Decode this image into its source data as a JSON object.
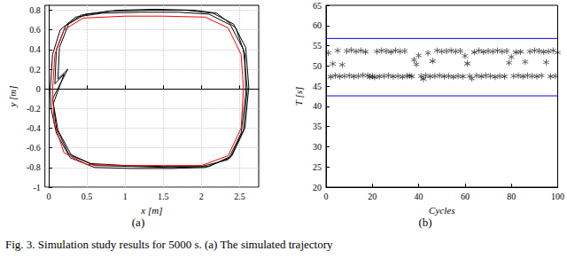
{
  "caption": "Fig. 3.   Simulation study results for 5000 s. (a) The simulated trajectory",
  "chart_data": [
    {
      "type": "line",
      "title": "(a)",
      "x_label": "x [m]",
      "y_label": "y [m]",
      "xlim": [
        -0.05,
        2.75
      ],
      "xticks": [
        0,
        0.5,
        1,
        1.5,
        2,
        2.5
      ],
      "ylim": [
        -1,
        0.85
      ],
      "yticks": [
        -1,
        -0.8,
        -0.6,
        -0.4,
        -0.2,
        0,
        0.2,
        0.4,
        0.6,
        0.8
      ],
      "grid": true,
      "series": [
        {
          "color": "#000000",
          "line_style": "solid",
          "x": [
            0.02,
            0.05,
            0.15,
            0.35,
            0.7,
            1.2,
            1.7,
            2.1,
            2.38,
            2.55,
            2.6,
            2.55,
            2.38,
            2.05,
            1.6,
            1.1,
            0.6,
            0.28,
            0.1,
            0.03,
            0.02
          ],
          "values": [
            0.0,
            0.35,
            0.6,
            0.73,
            0.77,
            0.78,
            0.78,
            0.76,
            0.65,
            0.4,
            0.0,
            -0.42,
            -0.7,
            -0.8,
            -0.81,
            -0.81,
            -0.8,
            -0.7,
            -0.45,
            -0.2,
            0.0
          ]
        },
        {
          "color": "#000000",
          "line_style": "solid",
          "x": [
            0.08,
            0.1,
            0.22,
            0.42,
            0.8,
            1.3,
            1.8,
            2.15,
            2.42,
            2.58,
            2.62,
            2.57,
            2.4,
            2.1,
            1.6,
            1.1,
            0.6,
            0.3,
            0.12,
            0.06,
            0.2,
            0.08
          ],
          "values": [
            0.05,
            0.4,
            0.64,
            0.75,
            0.79,
            0.8,
            0.8,
            0.77,
            0.66,
            0.42,
            0.02,
            -0.4,
            -0.68,
            -0.79,
            -0.8,
            -0.79,
            -0.78,
            -0.68,
            -0.42,
            -0.15,
            0.15,
            0.05
          ]
        },
        {
          "color": "#000000",
          "line_style": "solid",
          "x": [
            0.12,
            0.14,
            0.26,
            0.48,
            0.9,
            1.4,
            1.9,
            2.2,
            2.45,
            2.57,
            2.58,
            2.52,
            2.35,
            2.0,
            1.5,
            1.0,
            0.55,
            0.26,
            0.1,
            0.05,
            0.25,
            0.12
          ],
          "values": [
            0.1,
            0.42,
            0.66,
            0.76,
            0.8,
            0.81,
            0.8,
            0.77,
            0.62,
            0.35,
            -0.05,
            -0.45,
            -0.72,
            -0.79,
            -0.79,
            -0.78,
            -0.76,
            -0.66,
            -0.4,
            -0.1,
            0.2,
            0.1
          ]
        },
        {
          "color": "#ff0000",
          "line_style": "solid",
          "x": [
            0.05,
            0.08,
            0.2,
            0.45,
            1.0,
            1.5,
            2.05,
            2.35,
            2.52,
            2.55,
            2.52,
            2.35,
            2.0,
            1.5,
            1.0,
            0.5,
            0.2,
            0.07,
            0.05
          ],
          "values": [
            0.0,
            0.35,
            0.6,
            0.72,
            0.74,
            0.74,
            0.73,
            0.62,
            0.35,
            0.0,
            -0.4,
            -0.68,
            -0.78,
            -0.78,
            -0.78,
            -0.77,
            -0.65,
            -0.35,
            0.0
          ]
        }
      ]
    },
    {
      "type": "scatter",
      "title": "(b)",
      "x_label": "Cycles",
      "y_label": "T [s]",
      "xlim": [
        0,
        100
      ],
      "xticks": [
        0,
        20,
        40,
        60,
        80,
        100
      ],
      "ylim": [
        20,
        65
      ],
      "yticks": [
        20,
        25,
        30,
        35,
        40,
        45,
        50,
        55,
        60,
        65
      ],
      "grid": false,
      "series": [
        {
          "type": "scatter",
          "color": "#000000",
          "marker": "asterisk",
          "x": [
            1,
            2,
            3,
            4,
            5,
            6,
            7,
            8,
            9,
            10,
            11,
            12,
            13,
            14,
            15,
            16,
            17,
            18,
            19,
            20,
            21,
            22,
            23,
            24,
            25,
            26,
            27,
            28,
            29,
            30,
            31,
            32,
            33,
            34,
            35,
            36,
            37,
            38,
            39,
            40,
            41,
            42,
            43,
            44,
            45,
            46,
            47,
            48,
            49,
            50,
            51,
            52,
            53,
            54,
            55,
            56,
            57,
            58,
            59,
            60,
            61,
            62,
            63,
            64,
            65,
            66,
            67,
            68,
            69,
            70,
            71,
            72,
            73,
            74,
            75,
            76,
            77,
            78,
            79,
            80,
            81,
            82,
            83,
            84,
            85,
            86,
            87,
            88,
            89,
            90,
            91,
            92,
            93,
            94,
            95,
            96,
            97,
            98,
            99,
            100
          ],
          "values": [
            53.2,
            47.3,
            50.5,
            47.6,
            53.8,
            47.4,
            50.3,
            47.5,
            53.7,
            47.6,
            53.9,
            47.4,
            53.6,
            47.5,
            53.8,
            47.7,
            53.5,
            47.6,
            47.3,
            47.5,
            47.2,
            53.6,
            47.4,
            53.8,
            47.5,
            53.7,
            47.6,
            53.5,
            47.4,
            53.8,
            47.5,
            53.6,
            47.3,
            53.7,
            47.5,
            47.6,
            47.4,
            51.5,
            50.4,
            52.6,
            47.5,
            46.8,
            47.6,
            53.2,
            47.4,
            51.2,
            47.5,
            53.8,
            47.6,
            53.6,
            47.4,
            53.7,
            47.5,
            53.8,
            47.3,
            53.6,
            47.5,
            53.7,
            47.4,
            52.5,
            50.6,
            47.5,
            46.9,
            53.4,
            47.6,
            53.8,
            47.4,
            53.5,
            47.6,
            53.7,
            47.5,
            53.6,
            47.3,
            53.8,
            47.5,
            53.6,
            47.4,
            53.7,
            50.8,
            52.2,
            47.5,
            53.4,
            47.6,
            53.5,
            47.4,
            51.0,
            47.6,
            53.6,
            47.5,
            53.8,
            47.4,
            53.7,
            47.6,
            53.5,
            50.9,
            53.6,
            47.4,
            53.8,
            47.5,
            53.3
          ]
        },
        {
          "type": "line",
          "color": "#0000ff",
          "line_style": "solid",
          "x": [
            0,
            100
          ],
          "values": [
            56.8,
            56.8
          ]
        },
        {
          "type": "line",
          "color": "#0000ff",
          "line_style": "solid",
          "x": [
            0,
            100
          ],
          "values": [
            42.6,
            42.6
          ]
        }
      ]
    }
  ]
}
